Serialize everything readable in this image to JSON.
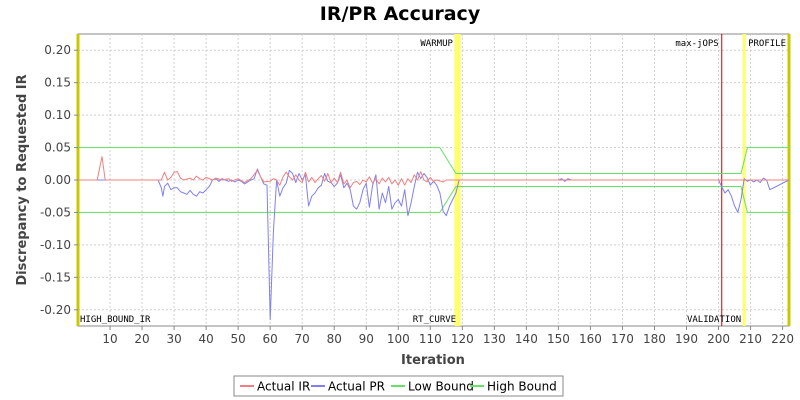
{
  "chart_data": {
    "type": "line",
    "title": "IR/PR Accuracy",
    "xlabel": "Iteration",
    "ylabel": "Discrepancy to Requested IR",
    "xlim": [
      0,
      222
    ],
    "ylim": [
      -0.225,
      0.225
    ],
    "x_ticks": [
      10,
      20,
      30,
      40,
      50,
      60,
      70,
      80,
      90,
      100,
      110,
      120,
      130,
      140,
      150,
      160,
      170,
      180,
      190,
      200,
      210,
      220
    ],
    "y_ticks": [
      0.2,
      0.15,
      0.1,
      0.05,
      0.0,
      -0.05,
      -0.1,
      -0.15,
      -0.2
    ],
    "y_tick_labels": [
      "0.20",
      "0.15",
      "0.10",
      "0.05",
      "0.00",
      "-0.05",
      "-0.10",
      "-0.15",
      "-0.20"
    ],
    "grid": true,
    "legend_position": "bottom",
    "series": [
      {
        "name": "Actual IR",
        "color": "#f08080",
        "points": [
          [
            0,
            0
          ],
          [
            6,
            0
          ],
          [
            7.5,
            0.036
          ],
          [
            8.5,
            0
          ],
          [
            26,
            0
          ],
          [
            27,
            0.012
          ],
          [
            28,
            0
          ],
          [
            29,
            0.004
          ],
          [
            30,
            0.012
          ],
          [
            31,
            0.013
          ],
          [
            32,
            0.003
          ],
          [
            33,
            0
          ],
          [
            35,
            0.003
          ],
          [
            36,
            0
          ],
          [
            37,
            0.006
          ],
          [
            38,
            0.002
          ],
          [
            39,
            0
          ],
          [
            40,
            0.004
          ],
          [
            42,
            0
          ],
          [
            43,
            0.003
          ],
          [
            45,
            0
          ],
          [
            47,
            0.002
          ],
          [
            48,
            -0.002
          ],
          [
            50,
            0.002
          ],
          [
            52,
            -0.004
          ],
          [
            54,
            0.002
          ],
          [
            56,
            0.015
          ],
          [
            57,
            0.005
          ],
          [
            58,
            -0.003
          ],
          [
            60,
            -0.002
          ],
          [
            61,
            0.002
          ],
          [
            62,
            0
          ],
          [
            63,
            -0.008
          ],
          [
            64,
            0.005
          ],
          [
            65,
            0.012
          ],
          [
            66,
            0.005
          ],
          [
            67,
            0
          ],
          [
            68,
            0.008
          ],
          [
            69,
            0
          ],
          [
            70,
            -0.004
          ],
          [
            71,
            0.012
          ],
          [
            72,
            -0.003
          ],
          [
            73,
            0.004
          ],
          [
            74,
            -0.004
          ],
          [
            75,
            0.002
          ],
          [
            76,
            0.007
          ],
          [
            77,
            -0.002
          ],
          [
            78,
            0.01
          ],
          [
            79,
            -0.004
          ],
          [
            80,
            0.003
          ],
          [
            81,
            -0.004
          ],
          [
            82,
            0.012
          ],
          [
            83,
            -0.006
          ],
          [
            84,
            0
          ],
          [
            85,
            -0.012
          ],
          [
            86,
            -0.004
          ],
          [
            87,
            -0.002
          ],
          [
            88,
            -0.007
          ],
          [
            89,
            0
          ],
          [
            90,
            -0.003
          ],
          [
            91,
            0.005
          ],
          [
            92,
            -0.005
          ],
          [
            93,
            0.002
          ],
          [
            94,
            -0.006
          ],
          [
            95,
            0.003
          ],
          [
            96,
            -0.003
          ],
          [
            97,
            0.004
          ],
          [
            98,
            -0.006
          ],
          [
            99,
            0
          ],
          [
            100,
            -0.008
          ],
          [
            101,
            0.002
          ],
          [
            102,
            -0.008
          ],
          [
            103,
            0.002
          ],
          [
            104,
            -0.004
          ],
          [
            105,
            0.008
          ],
          [
            106,
            0
          ],
          [
            107,
            0.013
          ],
          [
            108,
            0
          ],
          [
            109,
            -0.003
          ],
          [
            110,
            0.004
          ],
          [
            111,
            -0.002
          ],
          [
            112,
            0
          ],
          [
            114,
            -0.003
          ],
          [
            115,
            0
          ],
          [
            117,
            0
          ],
          [
            120,
            0
          ],
          [
            222,
            0
          ]
        ]
      },
      {
        "name": "Actual PR",
        "color": "#8080f0",
        "points": [
          [
            0,
            0
          ],
          [
            25,
            0
          ],
          [
            26,
            -0.012
          ],
          [
            26.5,
            -0.025
          ],
          [
            27,
            -0.01
          ],
          [
            28,
            -0.005
          ],
          [
            29,
            -0.015
          ],
          [
            30,
            -0.012
          ],
          [
            31,
            -0.012
          ],
          [
            32,
            -0.018
          ],
          [
            33,
            -0.02
          ],
          [
            34,
            -0.022
          ],
          [
            35,
            -0.016
          ],
          [
            36,
            -0.022
          ],
          [
            37,
            -0.025
          ],
          [
            38,
            -0.018
          ],
          [
            39,
            -0.02
          ],
          [
            40,
            -0.015
          ],
          [
            41,
            -0.01
          ],
          [
            42,
            0
          ],
          [
            43,
            0.002
          ],
          [
            44,
            -0.002
          ],
          [
            45,
            0.002
          ],
          [
            46,
            0
          ],
          [
            47,
            -0.002
          ],
          [
            48,
            0
          ],
          [
            49,
            -0.003
          ],
          [
            50,
            0
          ],
          [
            51,
            -0.002
          ],
          [
            52,
            -0.006
          ],
          [
            53,
            -0.003
          ],
          [
            54,
            0
          ],
          [
            55,
            0.002
          ],
          [
            56,
            0.017
          ],
          [
            57,
            0.005
          ],
          [
            58,
            -0.006
          ],
          [
            59,
            -0.008
          ],
          [
            60,
            -0.215
          ],
          [
            61,
            -0.08
          ],
          [
            62,
            0
          ],
          [
            63,
            -0.025
          ],
          [
            64,
            -0.012
          ],
          [
            65,
            -0.005
          ],
          [
            66,
            0.015
          ],
          [
            67,
            0.01
          ],
          [
            68,
            -0.004
          ],
          [
            69,
            0.01
          ],
          [
            70,
            0
          ],
          [
            71,
            0.008
          ],
          [
            72,
            -0.04
          ],
          [
            73,
            -0.025
          ],
          [
            74,
            -0.02
          ],
          [
            75,
            -0.012
          ],
          [
            76,
            -0.008
          ],
          [
            77,
            0.01
          ],
          [
            78,
            -0.002
          ],
          [
            79,
            -0.004
          ],
          [
            80,
            -0.01
          ],
          [
            81,
            -0.005
          ],
          [
            82,
            0.008
          ],
          [
            83,
            -0.012
          ],
          [
            84,
            -0.005
          ],
          [
            85,
            -0.015
          ],
          [
            86,
            -0.04
          ],
          [
            87,
            -0.045
          ],
          [
            88,
            -0.035
          ],
          [
            89,
            -0.015
          ],
          [
            90,
            -0.005
          ],
          [
            91,
            -0.042
          ],
          [
            92,
            -0.008
          ],
          [
            93,
            0.008
          ],
          [
            94,
            -0.045
          ],
          [
            95,
            -0.02
          ],
          [
            96,
            -0.035
          ],
          [
            97,
            -0.01
          ],
          [
            98,
            -0.045
          ],
          [
            99,
            -0.035
          ],
          [
            100,
            -0.03
          ],
          [
            101,
            -0.04
          ],
          [
            102,
            -0.015
          ],
          [
            103,
            -0.055
          ],
          [
            104,
            -0.035
          ],
          [
            105,
            -0.01
          ],
          [
            106,
            0.012
          ],
          [
            107,
            0.002
          ],
          [
            108,
            0.01
          ],
          [
            109,
            0.004
          ],
          [
            110,
            -0.008
          ],
          [
            111,
            -0.002
          ],
          [
            112,
            -0.008
          ],
          [
            113,
            -0.02
          ],
          [
            114,
            -0.048
          ],
          [
            115,
            -0.055
          ],
          [
            116,
            -0.04
          ],
          [
            117,
            -0.03
          ],
          [
            118,
            -0.02
          ],
          [
            119,
            0
          ],
          [
            150,
            0
          ],
          [
            151,
            0.002
          ],
          [
            152,
            -0.002
          ],
          [
            153,
            0.002
          ],
          [
            154,
            0
          ],
          [
            190,
            0
          ],
          [
            200,
            0
          ],
          [
            201,
            -0.01
          ],
          [
            202,
            -0.02
          ],
          [
            203,
            -0.015
          ],
          [
            204,
            -0.025
          ],
          [
            205,
            -0.04
          ],
          [
            206,
            -0.05
          ],
          [
            207,
            -0.03
          ],
          [
            208,
            0.002
          ],
          [
            209,
            -0.002
          ],
          [
            210,
            0
          ],
          [
            211,
            -0.003
          ],
          [
            212,
            0
          ],
          [
            213,
            -0.004
          ],
          [
            214,
            0.003
          ],
          [
            215,
            0
          ],
          [
            216,
            -0.015
          ],
          [
            218,
            -0.01
          ],
          [
            220,
            -0.005
          ],
          [
            222,
            0
          ]
        ]
      },
      {
        "name": "Low Bound",
        "color": "#66e066",
        "points": [
          [
            0,
            -0.05
          ],
          [
            113,
            -0.05
          ],
          [
            118,
            -0.01
          ],
          [
            201,
            -0.01
          ],
          [
            207,
            -0.01
          ],
          [
            209,
            -0.05
          ],
          [
            222,
            -0.05
          ]
        ]
      },
      {
        "name": "High Bound",
        "color": "#66e066",
        "points": [
          [
            0,
            0.05
          ],
          [
            113,
            0.05
          ],
          [
            118,
            0.01
          ],
          [
            201,
            0.01
          ],
          [
            207,
            0.01
          ],
          [
            209,
            0.05
          ],
          [
            222,
            0.05
          ]
        ]
      }
    ],
    "markers": [
      {
        "x": 0,
        "label": "HIGH_BOUND_IR",
        "color": "#c8c800",
        "label_pos": "bottom-right"
      },
      {
        "x": 118,
        "label": "WARMUP",
        "color": "#ffff66",
        "label_pos": "top-left"
      },
      {
        "x": 119,
        "label": "RT_CURVE",
        "color": "#ffff66",
        "label_pos": "bottom-left"
      },
      {
        "x": 201,
        "label": "max-jOPS",
        "color": "#cc0000",
        "label_pos": "top-left"
      },
      {
        "x": 208,
        "label": "VALIDATION",
        "color": "#ffff66",
        "label_pos": "bottom-left"
      },
      {
        "x": 222,
        "label": "PROFILE",
        "color": "#c8c800",
        "label_pos": "top-left"
      }
    ]
  }
}
